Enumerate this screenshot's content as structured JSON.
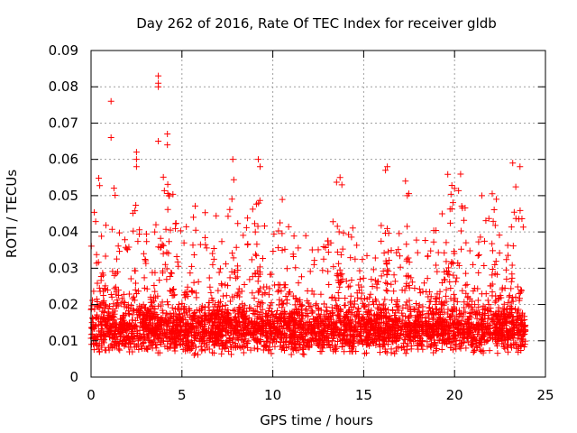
{
  "chart_data": {
    "type": "scatter",
    "title": "Day 262 of 2016, Rate Of TEC Index for receiver gldb",
    "xlabel": "GPS time / hours",
    "ylabel": "ROTI / TECUs",
    "xlim": [
      0,
      25
    ],
    "ylim": [
      0,
      0.09
    ],
    "x_ticks": [
      0,
      5,
      10,
      15,
      20,
      25
    ],
    "x_tick_labels": [
      "0",
      "5",
      "10",
      "15",
      "20",
      "25"
    ],
    "y_ticks": [
      0,
      0.01,
      0.02,
      0.03,
      0.04,
      0.05,
      0.06,
      0.07,
      0.08,
      0.09
    ],
    "y_tick_labels": [
      "0",
      "0.01",
      "0.02",
      "0.03",
      "0.04",
      "0.05",
      "0.06",
      "0.07",
      "0.08",
      "0.09"
    ],
    "grid": true,
    "marker": "+",
    "series": [
      {
        "name": "ROTI",
        "color": "#ff0000",
        "x_range": [
          0,
          23.9
        ],
        "typical_y_range": [
          0.005,
          0.02
        ],
        "outliers": [
          {
            "x": 1.1,
            "y": 0.076
          },
          {
            "x": 1.1,
            "y": 0.066
          },
          {
            "x": 3.7,
            "y": 0.083
          },
          {
            "x": 3.7,
            "y": 0.081
          },
          {
            "x": 3.7,
            "y": 0.08
          },
          {
            "x": 4.2,
            "y": 0.067
          },
          {
            "x": 4.2,
            "y": 0.064
          },
          {
            "x": 3.7,
            "y": 0.065
          },
          {
            "x": 2.5,
            "y": 0.062
          },
          {
            "x": 2.5,
            "y": 0.06
          },
          {
            "x": 2.5,
            "y": 0.058
          },
          {
            "x": 7.8,
            "y": 0.06
          },
          {
            "x": 9.2,
            "y": 0.06
          },
          {
            "x": 9.3,
            "y": 0.058
          },
          {
            "x": 16.3,
            "y": 0.058
          },
          {
            "x": 16.2,
            "y": 0.057
          },
          {
            "x": 23.2,
            "y": 0.059
          },
          {
            "x": 23.6,
            "y": 0.058
          },
          {
            "x": 13.7,
            "y": 0.055
          },
          {
            "x": 13.8,
            "y": 0.053
          },
          {
            "x": 17.3,
            "y": 0.054
          },
          {
            "x": 17.4,
            "y": 0.05
          },
          {
            "x": 20.0,
            "y": 0.052
          },
          {
            "x": 21.5,
            "y": 0.05
          },
          {
            "x": 22.3,
            "y": 0.049
          }
        ]
      }
    ]
  }
}
